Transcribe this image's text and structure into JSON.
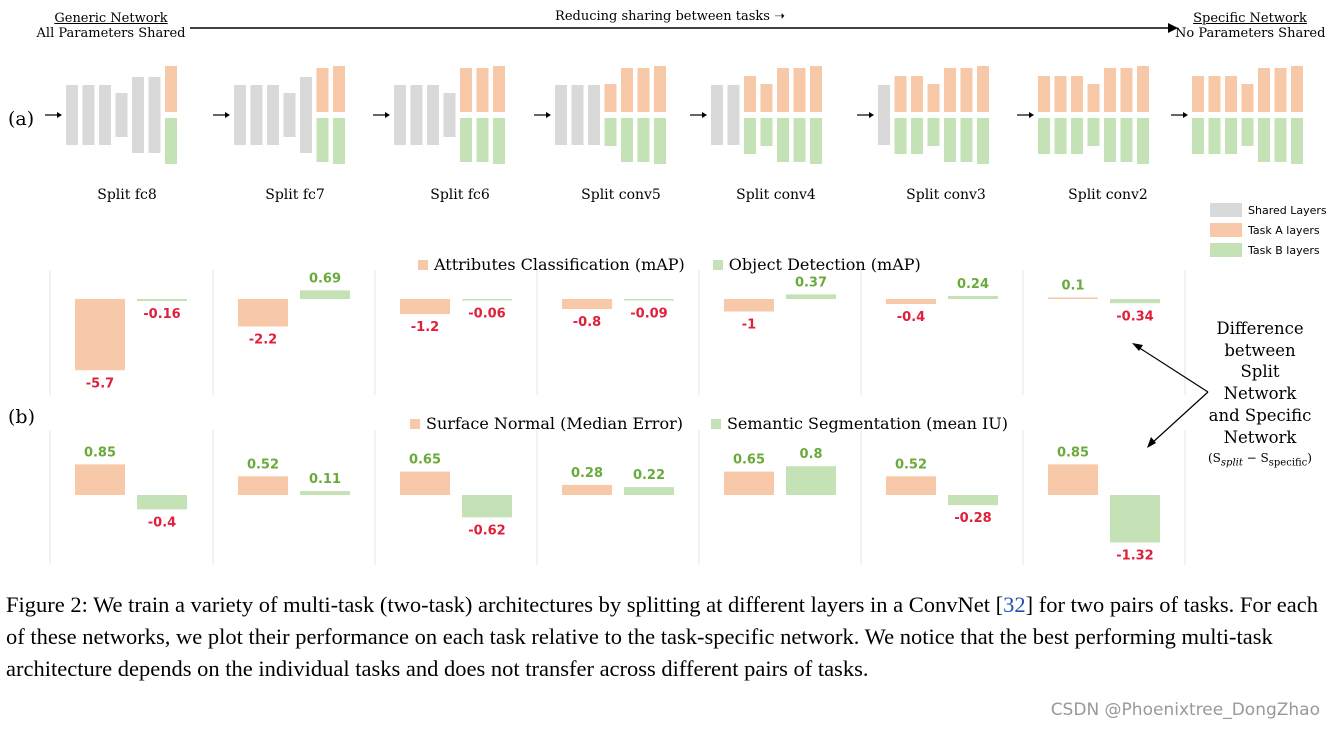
{
  "part_a": {
    "label": "(a)",
    "left_header": {
      "title": "Generic Network",
      "subtitle": "All Parameters Shared"
    },
    "arrow_label": "Reducing sharing between tasks",
    "right_header": {
      "title": "Specific Network",
      "subtitle": "No Parameters Shared"
    },
    "splits": [
      "Split fc8",
      "Split fc7",
      "Split fc6",
      "Split conv5",
      "Split conv4",
      "Split conv3",
      "Split conv2"
    ],
    "legend": [
      {
        "label": "Shared Layers",
        "color": "#d9d9d9"
      },
      {
        "label": "Task A layers",
        "color": "#f7c9a8"
      },
      {
        "label": "Task B layers",
        "color": "#c5e1b6"
      }
    ]
  },
  "part_b": {
    "label": "(b)",
    "side_note": {
      "lines": [
        "Difference",
        "between",
        "Split",
        "Network",
        "and Specific",
        "Network"
      ],
      "formula_prefix": "(S",
      "formula_sub1": "split",
      "formula_mid": " − S",
      "formula_sub2": "specific",
      "formula_suffix": ")"
    }
  },
  "chart_data": [
    {
      "type": "bar",
      "categories": [
        "Split fc8",
        "Split fc7",
        "Split fc6",
        "Split conv5",
        "Split conv4",
        "Split conv3",
        "Split conv2"
      ],
      "series": [
        {
          "name": "Attributes Classification (mAP)",
          "values": [
            -5.7,
            -2.2,
            -1.2,
            -0.8,
            -1,
            -0.4,
            0.1
          ]
        },
        {
          "name": "Object Detection (mAP)",
          "values": [
            -0.16,
            0.69,
            -0.06,
            -0.09,
            0.37,
            0.24,
            -0.34
          ]
        }
      ],
      "legend": [
        "Attributes Classification (mAP)",
        "Object Detection (mAP)"
      ]
    },
    {
      "type": "bar",
      "categories": [
        "Split fc8",
        "Split fc7",
        "Split fc6",
        "Split conv5",
        "Split conv4",
        "Split conv3",
        "Split conv2"
      ],
      "series": [
        {
          "name": "Surface Normal (Median Error)",
          "values": [
            0.85,
            0.52,
            0.65,
            0.28,
            0.65,
            0.52,
            0.85
          ]
        },
        {
          "name": "Semantic Segmentation (mean IU)",
          "values": [
            -0.4,
            0.11,
            -0.62,
            0.22,
            0.8,
            -0.28,
            -1.32
          ]
        }
      ],
      "legend": [
        "Surface Normal (Median Error)",
        "Semantic Segmentation (mean IU)"
      ]
    }
  ],
  "colors": {
    "task_a": "#f7c9a8",
    "task_b": "#c5e1b6",
    "shared": "#d9d9d9",
    "positive_text": "#6aaa3a",
    "negative_text": "#e0203a"
  },
  "caption": {
    "prefix": "Figure 2: We train a variety of multi-task (two-task) architectures by splitting at different layers in a ConvNet [",
    "ref": "32",
    "suffix": "] for two pairs of tasks. For each of these networks, we plot their performance on each task relative to the task-specific network. We notice that the best performing multi-task architecture depends on the individual tasks and does not transfer across different pairs of tasks."
  },
  "watermark": "CSDN @Phoenixtree_DongZhao"
}
